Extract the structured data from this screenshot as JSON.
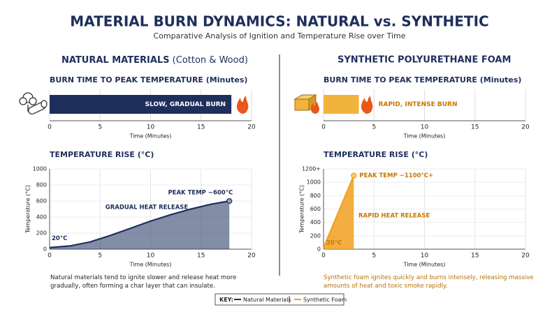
{
  "title": "MATERIAL BURN DYNAMICS: NATURAL vs. SYNTHETIC",
  "subtitle": "Comparative Analysis of Ignition and Temperature Rise over Time",
  "sections": [
    {
      "heading": "NATURAL MATERIALS",
      "heading_note": "(Cotton & Wood)",
      "note": "Natural materials tend to ignite slower and release heat more gradually, often forming a char layer that can insulate."
    },
    {
      "heading": "SYNTHETIC POLYURETHANE FOAM",
      "note": "Synthetic foam ignites quickly and burns intensely, releasing massive amounts of heat and toxic smoke rapidly."
    }
  ],
  "key_label": "KEY:",
  "chart_data": [
    {
      "type": "bar",
      "title": "BURN TIME TO PEAK TEMPERATURE (Minutes)",
      "xlabel": "Time (Minutes)",
      "values": [
        18
      ],
      "color": "#1e2f5c",
      "annotations": [
        "SLOW, GRADUAL BURN"
      ],
      "xlim": [
        0,
        20
      ],
      "xticks": [
        0,
        5,
        10,
        15,
        20
      ],
      "grid": true
    },
    {
      "type": "bar",
      "title": "BURN TIME TO PEAK TEMPERATURE (Minutes)",
      "xlabel": "Time (Minutes)",
      "values": [
        3.5
      ],
      "color": "#f2b33d",
      "annotations": [
        "RAPID, INTENSE BURN"
      ],
      "xlim": [
        0,
        20
      ],
      "xticks": [
        0,
        5,
        10,
        15,
        20
      ],
      "grid": true
    },
    {
      "type": "area",
      "title": "TEMPERATURE RISE (°C)",
      "xlabel": "Time (Minutes)",
      "ylabel": "Temperature (°C)",
      "x": [
        0,
        2,
        4,
        6,
        8,
        10,
        12,
        14,
        16,
        17.8
      ],
      "series": [
        {
          "name": "Natural Materials",
          "color": "#1e2f5c",
          "values": [
            20,
            40,
            90,
            170,
            260,
            350,
            430,
            500,
            560,
            600
          ]
        }
      ],
      "annotations": [
        "PEAK TEMP ~600°C",
        "GRADUAL HEAT RELEASE",
        "20°C"
      ],
      "xlim": [
        0,
        20
      ],
      "xticks": [
        0,
        5,
        10,
        15,
        20
      ],
      "ylim": [
        0,
        1000
      ],
      "yticks": [
        0,
        200,
        400,
        600,
        800,
        1000
      ],
      "grid": true
    },
    {
      "type": "area",
      "title": "TEMPERATURE RISE (°C)",
      "xlabel": "Time (Minutes)",
      "ylabel": "Temperature (°C)",
      "x": [
        0,
        3
      ],
      "series": [
        {
          "name": "Synthetic Foam",
          "color": "#f0a020",
          "values": [
            20,
            1100
          ]
        }
      ],
      "annotations": [
        "PEAK TEMP ~1100°C+",
        "RAPID HEAT RELEASE",
        "20°C"
      ],
      "xlim": [
        0,
        20
      ],
      "xticks": [
        0,
        5,
        10,
        15,
        20
      ],
      "ylim": [
        0,
        1200
      ],
      "yticks": [
        0,
        200,
        400,
        600,
        800,
        1000,
        {
          "value": 1200,
          "label": "1200+"
        }
      ],
      "grid": true
    }
  ]
}
